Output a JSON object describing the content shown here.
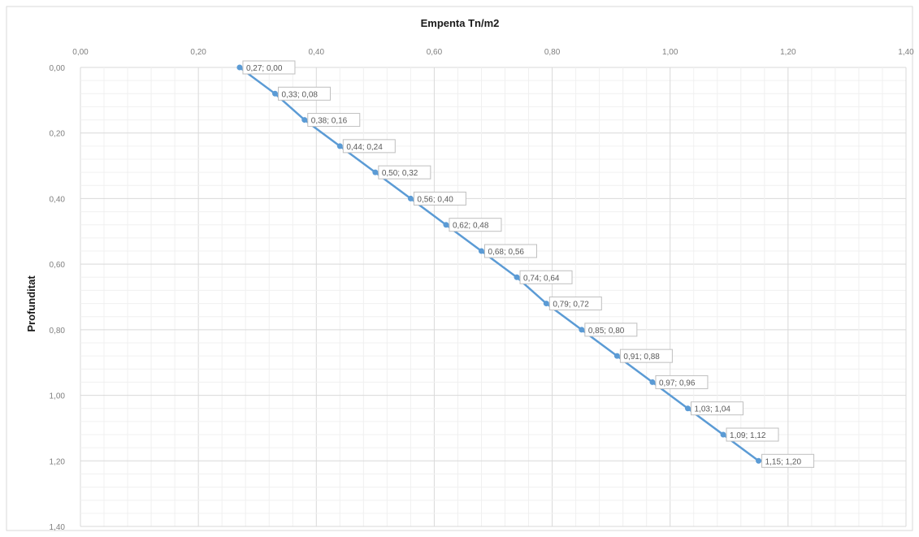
{
  "chart_data": {
    "type": "line",
    "title": "Empenta Tn/m2",
    "xlabel": "",
    "ylabel": "Profunditat",
    "xlim": [
      0,
      1.4
    ],
    "ylim": [
      0,
      1.4
    ],
    "y_reversed": true,
    "x_axis_position": "top",
    "x_ticks": [
      "0,00",
      "0,20",
      "0,40",
      "0,60",
      "0,80",
      "1,00",
      "1,20",
      "1,40"
    ],
    "y_ticks": [
      "0,00",
      "0,20",
      "0,40",
      "0,60",
      "0,80",
      "1,00",
      "1,20",
      "1,40"
    ],
    "grid": true,
    "legend": "none",
    "series": [
      {
        "color": "#5b9bd5",
        "points": [
          {
            "x": 0.27,
            "y": 0.0,
            "label": "0,27; 0,00"
          },
          {
            "x": 0.33,
            "y": 0.08,
            "label": "0,33; 0,08"
          },
          {
            "x": 0.38,
            "y": 0.16,
            "label": "0,38; 0,16"
          },
          {
            "x": 0.44,
            "y": 0.24,
            "label": "0,44; 0,24"
          },
          {
            "x": 0.5,
            "y": 0.32,
            "label": "0,50; 0,32"
          },
          {
            "x": 0.56,
            "y": 0.4,
            "label": "0,56; 0,40"
          },
          {
            "x": 0.62,
            "y": 0.48,
            "label": "0,62; 0,48"
          },
          {
            "x": 0.68,
            "y": 0.56,
            "label": "0,68; 0,56"
          },
          {
            "x": 0.74,
            "y": 0.64,
            "label": "0,74; 0,64"
          },
          {
            "x": 0.79,
            "y": 0.72,
            "label": "0,79; 0,72"
          },
          {
            "x": 0.85,
            "y": 0.8,
            "label": "0,85; 0,80"
          },
          {
            "x": 0.91,
            "y": 0.88,
            "label": "0,91; 0,88"
          },
          {
            "x": 0.97,
            "y": 0.96,
            "label": "0,97; 0,96"
          },
          {
            "x": 1.03,
            "y": 1.04,
            "label": "1,03; 1,04"
          },
          {
            "x": 1.09,
            "y": 1.12,
            "label": "1,09; 1,12"
          },
          {
            "x": 1.15,
            "y": 1.2,
            "label": "1,15; 1,20"
          }
        ]
      }
    ]
  }
}
